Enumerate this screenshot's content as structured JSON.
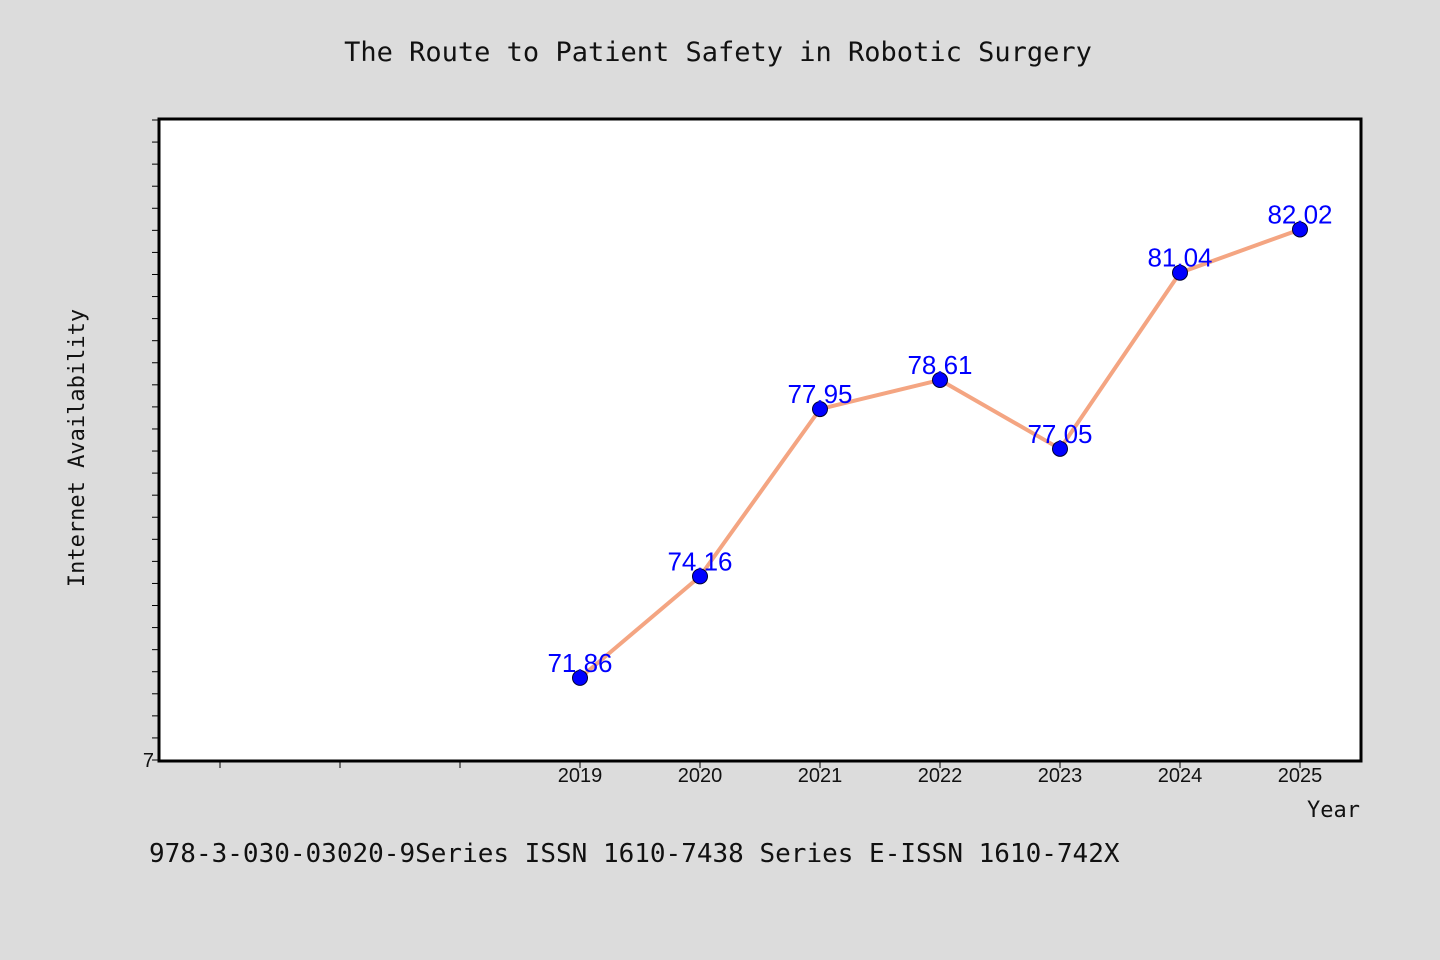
{
  "chart_data": {
    "type": "line",
    "title": "The Route to Patient Safety in Robotic Surgery",
    "xlabel": "Year",
    "ylabel": "Internet Availability",
    "y_tick_labels": [
      "7"
    ],
    "categories": [
      "2019",
      "2020",
      "2021",
      "2022",
      "2023",
      "2024",
      "2025"
    ],
    "x_range": [
      2015.5,
      2025.5
    ],
    "ylim": [
      70,
      84.5
    ],
    "grid": false,
    "series": [
      {
        "values": [
          71.86,
          74.16,
          77.95,
          78.61,
          77.05,
          81.04,
          82.02
        ],
        "labels": [
          "71.86",
          "74.16",
          "77.95",
          "78.61",
          "77.05",
          "81.04",
          "82.02"
        ],
        "line_color": "#f4a582",
        "marker_color": "#0000ff",
        "label_color": "#0000ff"
      }
    ]
  },
  "footer_text": "978-3-030-03020-9Series ISSN 1610-7438 Series E-ISSN 1610-742X",
  "colors": {
    "background": "#dcdcdc",
    "plot_background": "#ffffff",
    "line": "#f4a582",
    "marker": "#0000ff",
    "data_label": "#0000ff"
  }
}
